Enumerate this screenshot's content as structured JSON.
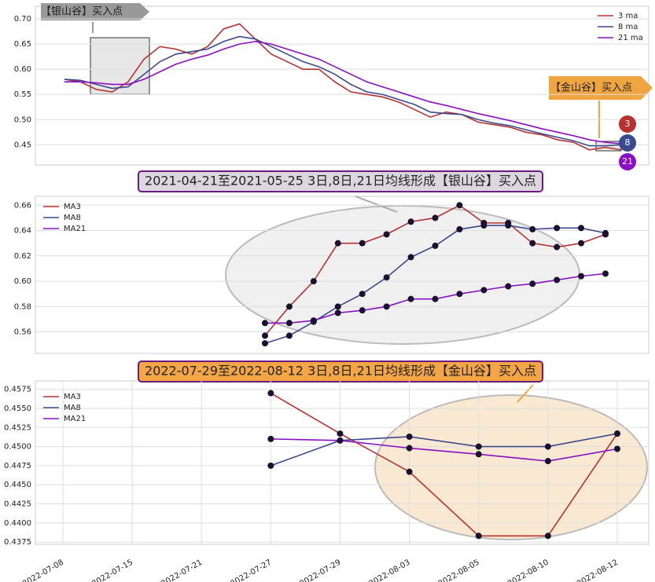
{
  "chart_data": [
    {
      "type": "line",
      "categories": [
        null,
        null,
        null,
        null,
        null,
        null,
        null,
        null,
        null,
        null,
        null,
        null,
        null,
        null,
        null,
        null,
        null,
        null,
        null,
        null,
        null,
        null,
        null,
        null,
        null,
        null,
        null,
        null,
        null,
        null,
        null,
        null,
        null,
        null,
        null,
        null
      ],
      "series": [
        {
          "name": "3 ma",
          "color": "#b8312f",
          "values": [
            0.58,
            0.575,
            0.56,
            0.555,
            0.575,
            0.62,
            0.645,
            0.64,
            0.63,
            0.645,
            0.68,
            0.69,
            0.66,
            0.63,
            0.615,
            0.6,
            0.6,
            0.575,
            0.555,
            0.55,
            0.545,
            0.535,
            0.52,
            0.505,
            0.515,
            0.51,
            0.495,
            0.49,
            0.485,
            0.475,
            0.47,
            0.46,
            0.455,
            0.44,
            0.445,
            0.44
          ]
        },
        {
          "name": "8 ma",
          "color": "#3b4a8f",
          "values": [
            0.58,
            0.578,
            0.57,
            0.562,
            0.565,
            0.59,
            0.615,
            0.63,
            0.635,
            0.64,
            0.655,
            0.665,
            0.66,
            0.645,
            0.63,
            0.615,
            0.605,
            0.59,
            0.57,
            0.555,
            0.55,
            0.54,
            0.53,
            0.515,
            0.512,
            0.51,
            0.5,
            0.493,
            0.488,
            0.48,
            0.472,
            0.465,
            0.458,
            0.448,
            0.448,
            0.45
          ]
        },
        {
          "name": "21 ma",
          "color": "#8a0fc4",
          "values": [
            0.575,
            0.575,
            0.573,
            0.57,
            0.57,
            0.58,
            0.595,
            0.61,
            0.62,
            0.628,
            0.64,
            0.65,
            0.655,
            0.65,
            0.64,
            0.63,
            0.62,
            0.605,
            0.59,
            0.575,
            0.565,
            0.555,
            0.545,
            0.535,
            0.528,
            0.52,
            0.512,
            0.505,
            0.498,
            0.49,
            0.482,
            0.475,
            0.468,
            0.46,
            0.455,
            0.452
          ]
        }
      ],
      "ylim": [
        0.41,
        0.725
      ],
      "yticks": [
        0.45,
        {
          "value": 0.5,
          "label": "0.50"
        },
        0.55,
        {
          "value": 0.6,
          "label": "0.60"
        },
        0.65,
        {
          "value": 0.7,
          "label": "0.70"
        }
      ],
      "grid": true,
      "legend": "upper right",
      "annotations": [
        "【银山谷】买入点",
        "【金山谷】买入点"
      ],
      "badges": [
        "3",
        "8",
        "21"
      ]
    },
    {
      "type": "line",
      "title": "2021-04-21至2021-05-25 3日,8日,21日均线形成【银山谷】买入点",
      "categories": [
        null,
        null,
        null,
        null,
        null,
        null,
        null,
        null,
        null,
        null,
        null,
        null,
        null,
        null,
        null
      ],
      "series": [
        {
          "name": "MA3",
          "color": "#b8312f",
          "values": [
            0.557,
            0.58,
            0.6,
            0.63,
            0.63,
            0.637,
            0.647,
            0.65,
            0.66,
            0.646,
            0.646,
            0.63,
            0.627,
            0.63,
            0.637
          ]
        },
        {
          "name": "MA8",
          "color": "#3b4a8f",
          "values": [
            0.551,
            0.557,
            0.568,
            0.58,
            0.59,
            0.603,
            0.619,
            0.628,
            0.641,
            0.644,
            0.644,
            0.641,
            0.642,
            0.642,
            0.638
          ]
        },
        {
          "name": "MA21",
          "color": "#8a0fc4",
          "values": [
            0.567,
            0.567,
            0.569,
            0.575,
            0.577,
            0.58,
            0.586,
            0.586,
            0.59,
            0.593,
            0.596,
            0.598,
            0.601,
            0.604,
            0.606
          ]
        }
      ],
      "ylim": [
        0.543,
        0.667
      ],
      "yticks": [
        0.56,
        0.58,
        {
          "value": 0.6,
          "label": "0.60"
        },
        0.62,
        0.64,
        0.66
      ],
      "grid": true,
      "legend": "upper left"
    },
    {
      "type": "line",
      "title": "2022-07-29至2022-08-12 3日,8日,21日均线形成【金山谷】买入点",
      "categories": [
        "2022-07-08",
        "2022-07-15",
        "2022-07-21",
        "2022-07-27",
        "2022-07-29",
        "2022-08-03",
        "2022-08-05",
        "2022-08-10",
        "2022-08-12"
      ],
      "series": [
        {
          "name": "MA3",
          "color": "#b8312f",
          "values": [
            null,
            null,
            null,
            0.457,
            0.4517,
            0.4467,
            0.4383,
            0.4383,
            0.4517
          ]
        },
        {
          "name": "MA8",
          "color": "#3b4a8f",
          "values": [
            null,
            null,
            null,
            0.4475,
            0.4508,
            0.4513,
            0.45,
            0.45,
            0.4517
          ]
        },
        {
          "name": "MA21",
          "color": "#8a0fc4",
          "values": [
            null,
            null,
            null,
            0.451,
            0.4508,
            0.4498,
            0.449,
            0.4481,
            0.4497
          ]
        }
      ],
      "ylim": [
        0.4372,
        0.4586
      ],
      "yticks": [
        0.4375,
        {
          "value": 0.44,
          "label": "0.4400"
        },
        0.4425,
        {
          "value": 0.445,
          "label": "0.4450"
        },
        0.4475,
        {
          "value": 0.45,
          "label": "0.4500"
        },
        0.4525,
        {
          "value": 0.455,
          "label": "0.4550"
        },
        0.4575
      ],
      "grid": true,
      "legend": "upper left"
    }
  ]
}
